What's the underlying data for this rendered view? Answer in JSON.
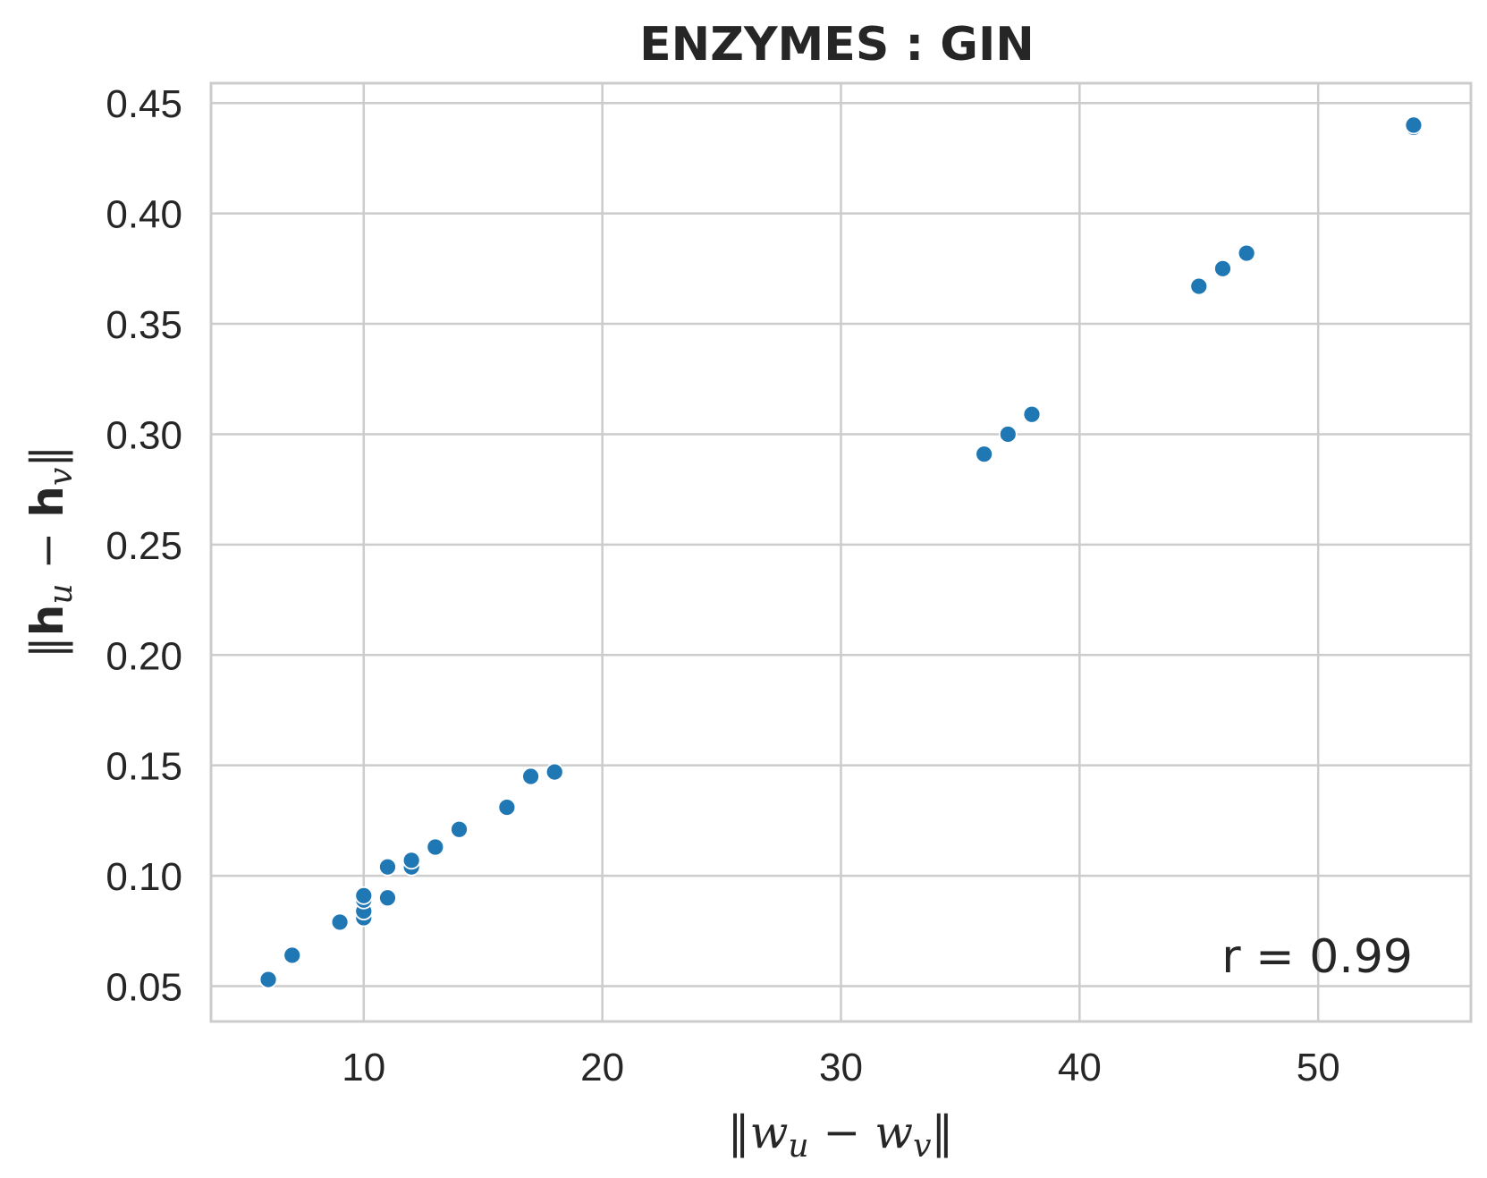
{
  "chart_data": {
    "type": "scatter",
    "title": "ENZYMES : GIN",
    "xlabel": "‖w_u − w_v‖",
    "ylabel": "‖h_u − h_v‖",
    "xlim": [
      3.6,
      56.4
    ],
    "ylim": [
      0.034,
      0.459
    ],
    "xticks": [
      10,
      20,
      30,
      40,
      50
    ],
    "yticks": [
      0.05,
      0.1,
      0.15,
      0.2,
      0.25,
      0.3,
      0.35,
      0.4,
      0.45
    ],
    "xtick_labels": [
      "10",
      "20",
      "30",
      "40",
      "50"
    ],
    "ytick_labels": [
      "0.05",
      "0.10",
      "0.15",
      "0.20",
      "0.25",
      "0.30",
      "0.35",
      "0.40",
      "0.45"
    ],
    "grid": true,
    "color": "#1f77b4",
    "annotation": "r = 0.99",
    "points": [
      {
        "x": 6,
        "y": 0.053
      },
      {
        "x": 7,
        "y": 0.064
      },
      {
        "x": 9,
        "y": 0.079
      },
      {
        "x": 10,
        "y": 0.081
      },
      {
        "x": 10,
        "y": 0.084
      },
      {
        "x": 10,
        "y": 0.089
      },
      {
        "x": 10,
        "y": 0.091
      },
      {
        "x": 11,
        "y": 0.09
      },
      {
        "x": 11,
        "y": 0.104
      },
      {
        "x": 12,
        "y": 0.104
      },
      {
        "x": 12,
        "y": 0.107
      },
      {
        "x": 13,
        "y": 0.113
      },
      {
        "x": 14,
        "y": 0.121
      },
      {
        "x": 16,
        "y": 0.131
      },
      {
        "x": 17,
        "y": 0.145
      },
      {
        "x": 18,
        "y": 0.147
      },
      {
        "x": 36,
        "y": 0.291
      },
      {
        "x": 37,
        "y": 0.3
      },
      {
        "x": 38,
        "y": 0.309
      },
      {
        "x": 45,
        "y": 0.367
      },
      {
        "x": 46,
        "y": 0.375
      },
      {
        "x": 47,
        "y": 0.382
      },
      {
        "x": 54,
        "y": 0.439
      },
      {
        "x": 54,
        "y": 0.44
      }
    ]
  }
}
